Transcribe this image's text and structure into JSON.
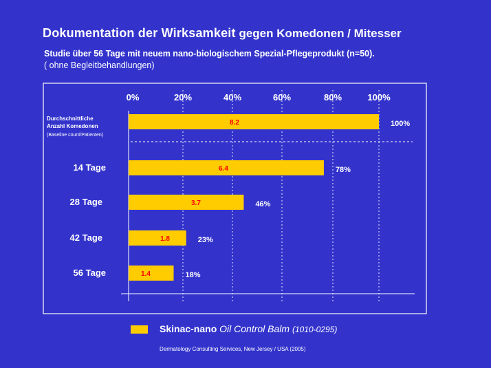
{
  "title_part1": "Dokumentation der Wirksamkeit",
  "title_part2": "gegen Komedonen / Mitesser",
  "subtitle_line1": "Studie über 56 Tage mit neuem  nano-biologischem Spezial-Pflegeprodukt (n=50).",
  "subtitle_line2": "( ohne Begleitbehandlungen)",
  "legend": {
    "brand": "Skinac-nano",
    "product": "Oil Control Balm",
    "code": "(1010-0295)",
    "color": "#ffcc00"
  },
  "footer": "Dermatology Consulting Services, New Jersey / USA (2005)",
  "colors": {
    "background": "#3333cc",
    "bar": "#ffcc00",
    "bar_label": "#ff0000",
    "text": "#ffffff"
  },
  "chart_data": {
    "type": "bar",
    "orientation": "horizontal",
    "x_ticks": [
      "0%",
      "20%",
      "40%",
      "60%",
      "80%",
      "100%"
    ],
    "xlim": [
      0,
      100
    ],
    "grid": true,
    "categories": [
      {
        "label_lines": [
          "Durchschnittliche",
          "Anzahl Komedonen"
        ],
        "note": "(Baseline count/Patienten)"
      },
      {
        "label_lines": [
          "14 Tage"
        ],
        "note": ""
      },
      {
        "label_lines": [
          "28 Tage"
        ],
        "note": ""
      },
      {
        "label_lines": [
          "42 Tage"
        ],
        "note": ""
      },
      {
        "label_lines": [
          "56 Tage"
        ],
        "note": ""
      }
    ],
    "values": [
      100,
      78,
      46,
      23,
      18
    ],
    "value_labels": [
      "100%",
      "78%",
      "46%",
      "23%",
      "18%"
    ],
    "counts": [
      "8.2",
      "6.4",
      "3.7",
      "1.8",
      "1.4"
    ]
  }
}
